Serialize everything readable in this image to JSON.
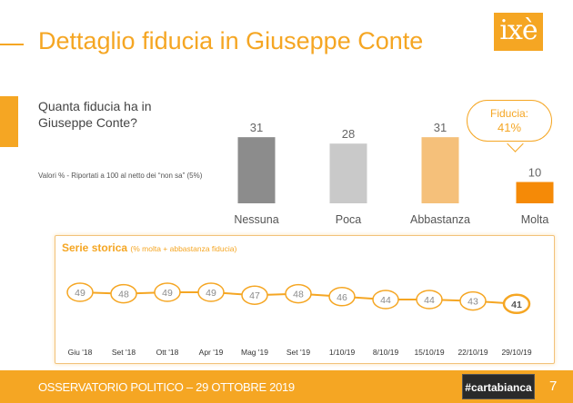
{
  "header": {
    "title": "Dettaglio fiducia in Giuseppe Conte",
    "logo_text": "ixè"
  },
  "question": "Quanta fiducia ha in Giuseppe Conte?",
  "note": "Valori % - Riportati a 100 al netto dei “non sa” (5%)",
  "callout": {
    "label": "Fiducia:",
    "value": "41%"
  },
  "series_title": "Serie storica",
  "series_subtitle": "(% molta + abbastanza fiducia)",
  "footer": {
    "text": "OSSERVATORIO POLITICO – 29 OTTOBRE 2019",
    "badge": "#cartabianca",
    "page": "7"
  },
  "colors": {
    "accent": "#f5a623",
    "nessuna": "#8c8c8c",
    "poca": "#c9c9c9",
    "abbastanza": "#f5c07a",
    "molta": "#f58a07"
  },
  "chart_data": [
    {
      "type": "bar",
      "categories": [
        "Nessuna",
        "Poca",
        "Abbastanza",
        "Molta"
      ],
      "values": [
        31,
        28,
        31,
        10
      ],
      "colors": [
        "#8c8c8c",
        "#c9c9c9",
        "#f5c07a",
        "#f58a07"
      ]
    },
    {
      "type": "line",
      "title": "Serie storica",
      "subtitle": "(% molta + abbastanza fiducia)",
      "x": [
        "Giu '18",
        "Set '18",
        "Ott '18",
        "Apr '19",
        "Mag '19",
        "Set '19",
        "1/10/19",
        "8/10/19",
        "15/10/19",
        "22/10/19",
        "29/10/19"
      ],
      "values": [
        49,
        48,
        49,
        49,
        47,
        48,
        46,
        44,
        44,
        43,
        41
      ],
      "color": "#f5a623"
    }
  ]
}
